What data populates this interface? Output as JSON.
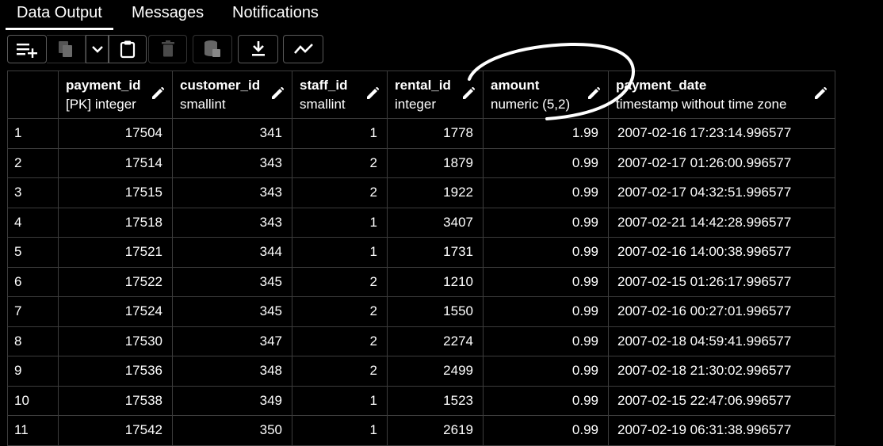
{
  "tabs": [
    {
      "label": "Data Output",
      "active": true
    },
    {
      "label": "Messages",
      "active": false
    },
    {
      "label": "Notifications",
      "active": false
    }
  ],
  "toolbar": {
    "buttons": [
      {
        "icon": "add-row-icon",
        "enabled": true
      },
      {
        "icon": "copy-icon",
        "enabled": false
      },
      {
        "icon": "chevron-down-icon",
        "enabled": true
      },
      {
        "icon": "paste-icon",
        "enabled": true
      },
      {
        "icon": "delete-icon",
        "enabled": false
      },
      {
        "icon": "save-data-icon",
        "enabled": false
      },
      {
        "icon": "download-icon",
        "enabled": true
      },
      {
        "icon": "graph-icon",
        "enabled": true
      }
    ]
  },
  "columns": [
    {
      "name": "payment_id",
      "type": "[PK] integer"
    },
    {
      "name": "customer_id",
      "type": "smallint"
    },
    {
      "name": "staff_id",
      "type": "smallint"
    },
    {
      "name": "rental_id",
      "type": "integer"
    },
    {
      "name": "amount",
      "type": "numeric (5,2)"
    },
    {
      "name": "payment_date",
      "type": "timestamp without time zone"
    }
  ],
  "rows": [
    {
      "n": "1",
      "payment_id": "17504",
      "customer_id": "341",
      "staff_id": "1",
      "rental_id": "1778",
      "amount": "1.99",
      "payment_date": "2007-02-16 17:23:14.996577"
    },
    {
      "n": "2",
      "payment_id": "17514",
      "customer_id": "343",
      "staff_id": "2",
      "rental_id": "1879",
      "amount": "0.99",
      "payment_date": "2007-02-17 01:26:00.996577"
    },
    {
      "n": "3",
      "payment_id": "17515",
      "customer_id": "343",
      "staff_id": "2",
      "rental_id": "1922",
      "amount": "0.99",
      "payment_date": "2007-02-17 04:32:51.996577"
    },
    {
      "n": "4",
      "payment_id": "17518",
      "customer_id": "343",
      "staff_id": "1",
      "rental_id": "3407",
      "amount": "0.99",
      "payment_date": "2007-02-21 14:42:28.996577"
    },
    {
      "n": "5",
      "payment_id": "17521",
      "customer_id": "344",
      "staff_id": "1",
      "rental_id": "1731",
      "amount": "0.99",
      "payment_date": "2007-02-16 14:00:38.996577"
    },
    {
      "n": "6",
      "payment_id": "17522",
      "customer_id": "345",
      "staff_id": "2",
      "rental_id": "1210",
      "amount": "0.99",
      "payment_date": "2007-02-15 01:26:17.996577"
    },
    {
      "n": "7",
      "payment_id": "17524",
      "customer_id": "345",
      "staff_id": "2",
      "rental_id": "1550",
      "amount": "0.99",
      "payment_date": "2007-02-16 00:27:01.996577"
    },
    {
      "n": "8",
      "payment_id": "17530",
      "customer_id": "347",
      "staff_id": "2",
      "rental_id": "2274",
      "amount": "0.99",
      "payment_date": "2007-02-18 04:59:41.996577"
    },
    {
      "n": "9",
      "payment_id": "17536",
      "customer_id": "348",
      "staff_id": "2",
      "rental_id": "2499",
      "amount": "0.99",
      "payment_date": "2007-02-18 21:30:02.996577"
    },
    {
      "n": "10",
      "payment_id": "17538",
      "customer_id": "349",
      "staff_id": "1",
      "rental_id": "1523",
      "amount": "0.99",
      "payment_date": "2007-02-15 22:47:06.996577"
    },
    {
      "n": "11",
      "payment_id": "17542",
      "customer_id": "350",
      "staff_id": "1",
      "rental_id": "2619",
      "amount": "0.99",
      "payment_date": "2007-02-19 06:31:38.996577"
    }
  ]
}
